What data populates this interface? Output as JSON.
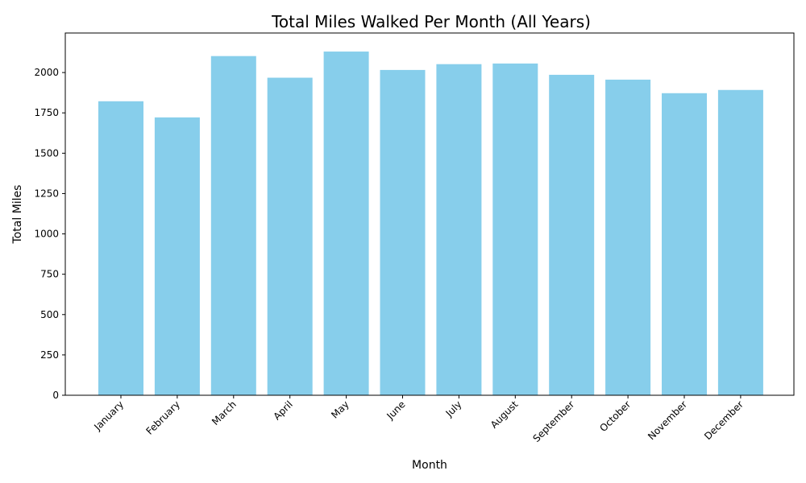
{
  "chart_data": {
    "type": "bar",
    "title": "Total Miles Walked Per Month (All Years)",
    "xlabel": "Month",
    "ylabel": "Total Miles",
    "categories": [
      "January",
      "February",
      "March",
      "April",
      "May",
      "June",
      "July",
      "August",
      "September",
      "October",
      "November",
      "December"
    ],
    "values": [
      1822,
      1722,
      2102,
      1968,
      2130,
      2016,
      2052,
      2056,
      1986,
      1956,
      1872,
      1892
    ],
    "ylim": [
      0,
      2245
    ],
    "yticks": [
      0,
      250,
      500,
      750,
      1000,
      1250,
      1500,
      1750,
      2000
    ],
    "bar_color": "#87ceeb",
    "grid": false,
    "legend": "none"
  }
}
